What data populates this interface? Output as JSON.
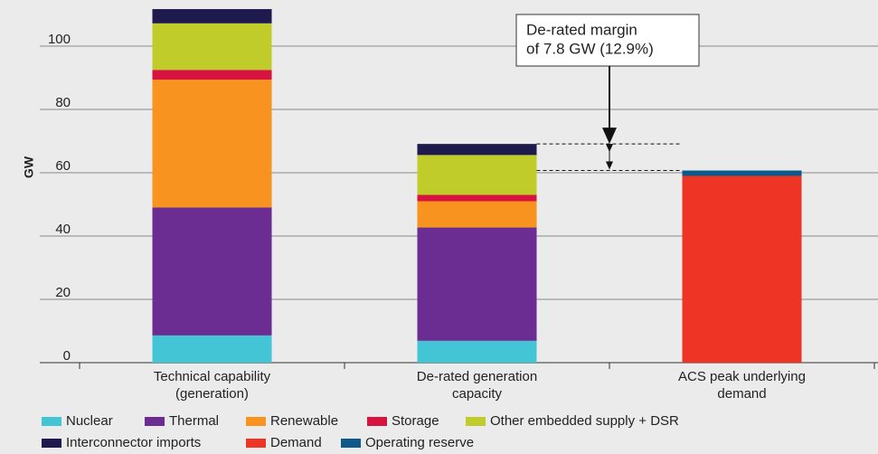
{
  "chart_data": {
    "type": "stacked_bar",
    "y_label": "GW",
    "categories": [
      [
        "Technical capability",
        "(generation)"
      ],
      [
        "De-rated generation",
        "capacity"
      ],
      [
        "ACS peak underlying",
        "demand"
      ]
    ],
    "series": [
      {
        "name": "Nuclear",
        "color": "#44c5d6",
        "values": [
          8.6,
          6.9,
          null
        ]
      },
      {
        "name": "Thermal",
        "color": "#6b2d91",
        "values": [
          40.4,
          35.8,
          null
        ]
      },
      {
        "name": "Renewable",
        "color": "#f7931e",
        "values": [
          40.4,
          8.3,
          null
        ]
      },
      {
        "name": "Storage",
        "color": "#d7143f",
        "values": [
          3.1,
          2.0,
          null
        ]
      },
      {
        "name": "Other embedded supply + DSR",
        "color": "#bfcc2a",
        "values": [
          14.7,
          12.6,
          null
        ]
      },
      {
        "name": "Interconnector imports",
        "color": "#1e1a4e",
        "values": [
          4.5,
          3.5,
          null
        ]
      },
      {
        "name": "Demand",
        "color": "#ee3424",
        "values": [
          null,
          null,
          59.0
        ]
      },
      {
        "name": "Operating reserve",
        "color": "#0d5a8a",
        "values": [
          null,
          null,
          1.7
        ]
      }
    ],
    "ylim": [
      0,
      114
    ],
    "yticks": [
      0,
      20,
      40,
      60,
      80,
      100
    ],
    "grid": true,
    "annotation": [
      "De-rated margin",
      "of 7.8 GW (12.9%)"
    ]
  }
}
